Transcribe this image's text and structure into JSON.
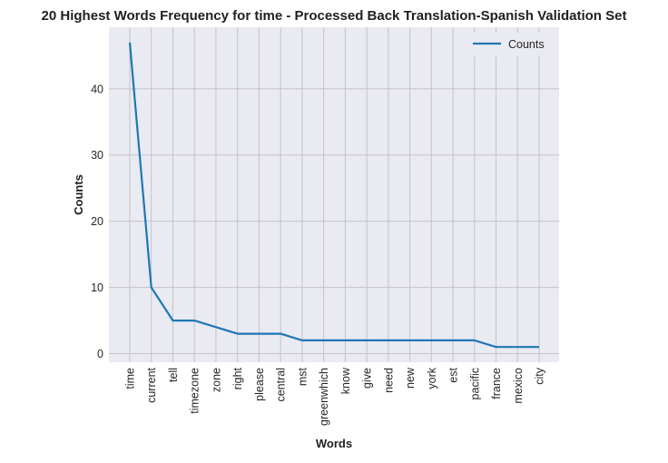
{
  "chart_data": {
    "type": "line",
    "title": "20 Highest Words Frequency for time - Processed Back Translation-Spanish Validation Set",
    "xlabel": "Words",
    "ylabel": "Counts",
    "categories": [
      "time",
      "current",
      "tell",
      "timezone",
      "zone",
      "right",
      "please",
      "central",
      "mst",
      "greenwhich",
      "know",
      "give",
      "need",
      "new",
      "york",
      "est",
      "pacific",
      "france",
      "mexico",
      "city"
    ],
    "series": [
      {
        "name": "Counts",
        "values": [
          47,
          10,
          5,
          5,
          4,
          3,
          3,
          3,
          2,
          2,
          2,
          2,
          2,
          2,
          2,
          2,
          2,
          1,
          1,
          1
        ],
        "color": "#1f77b4"
      }
    ],
    "ylim": [
      -1.3,
      49.3
    ],
    "yticks": [
      0,
      10,
      20,
      30,
      40
    ],
    "grid": true,
    "legend_position": "top-right",
    "background": "#eaeaf2"
  }
}
